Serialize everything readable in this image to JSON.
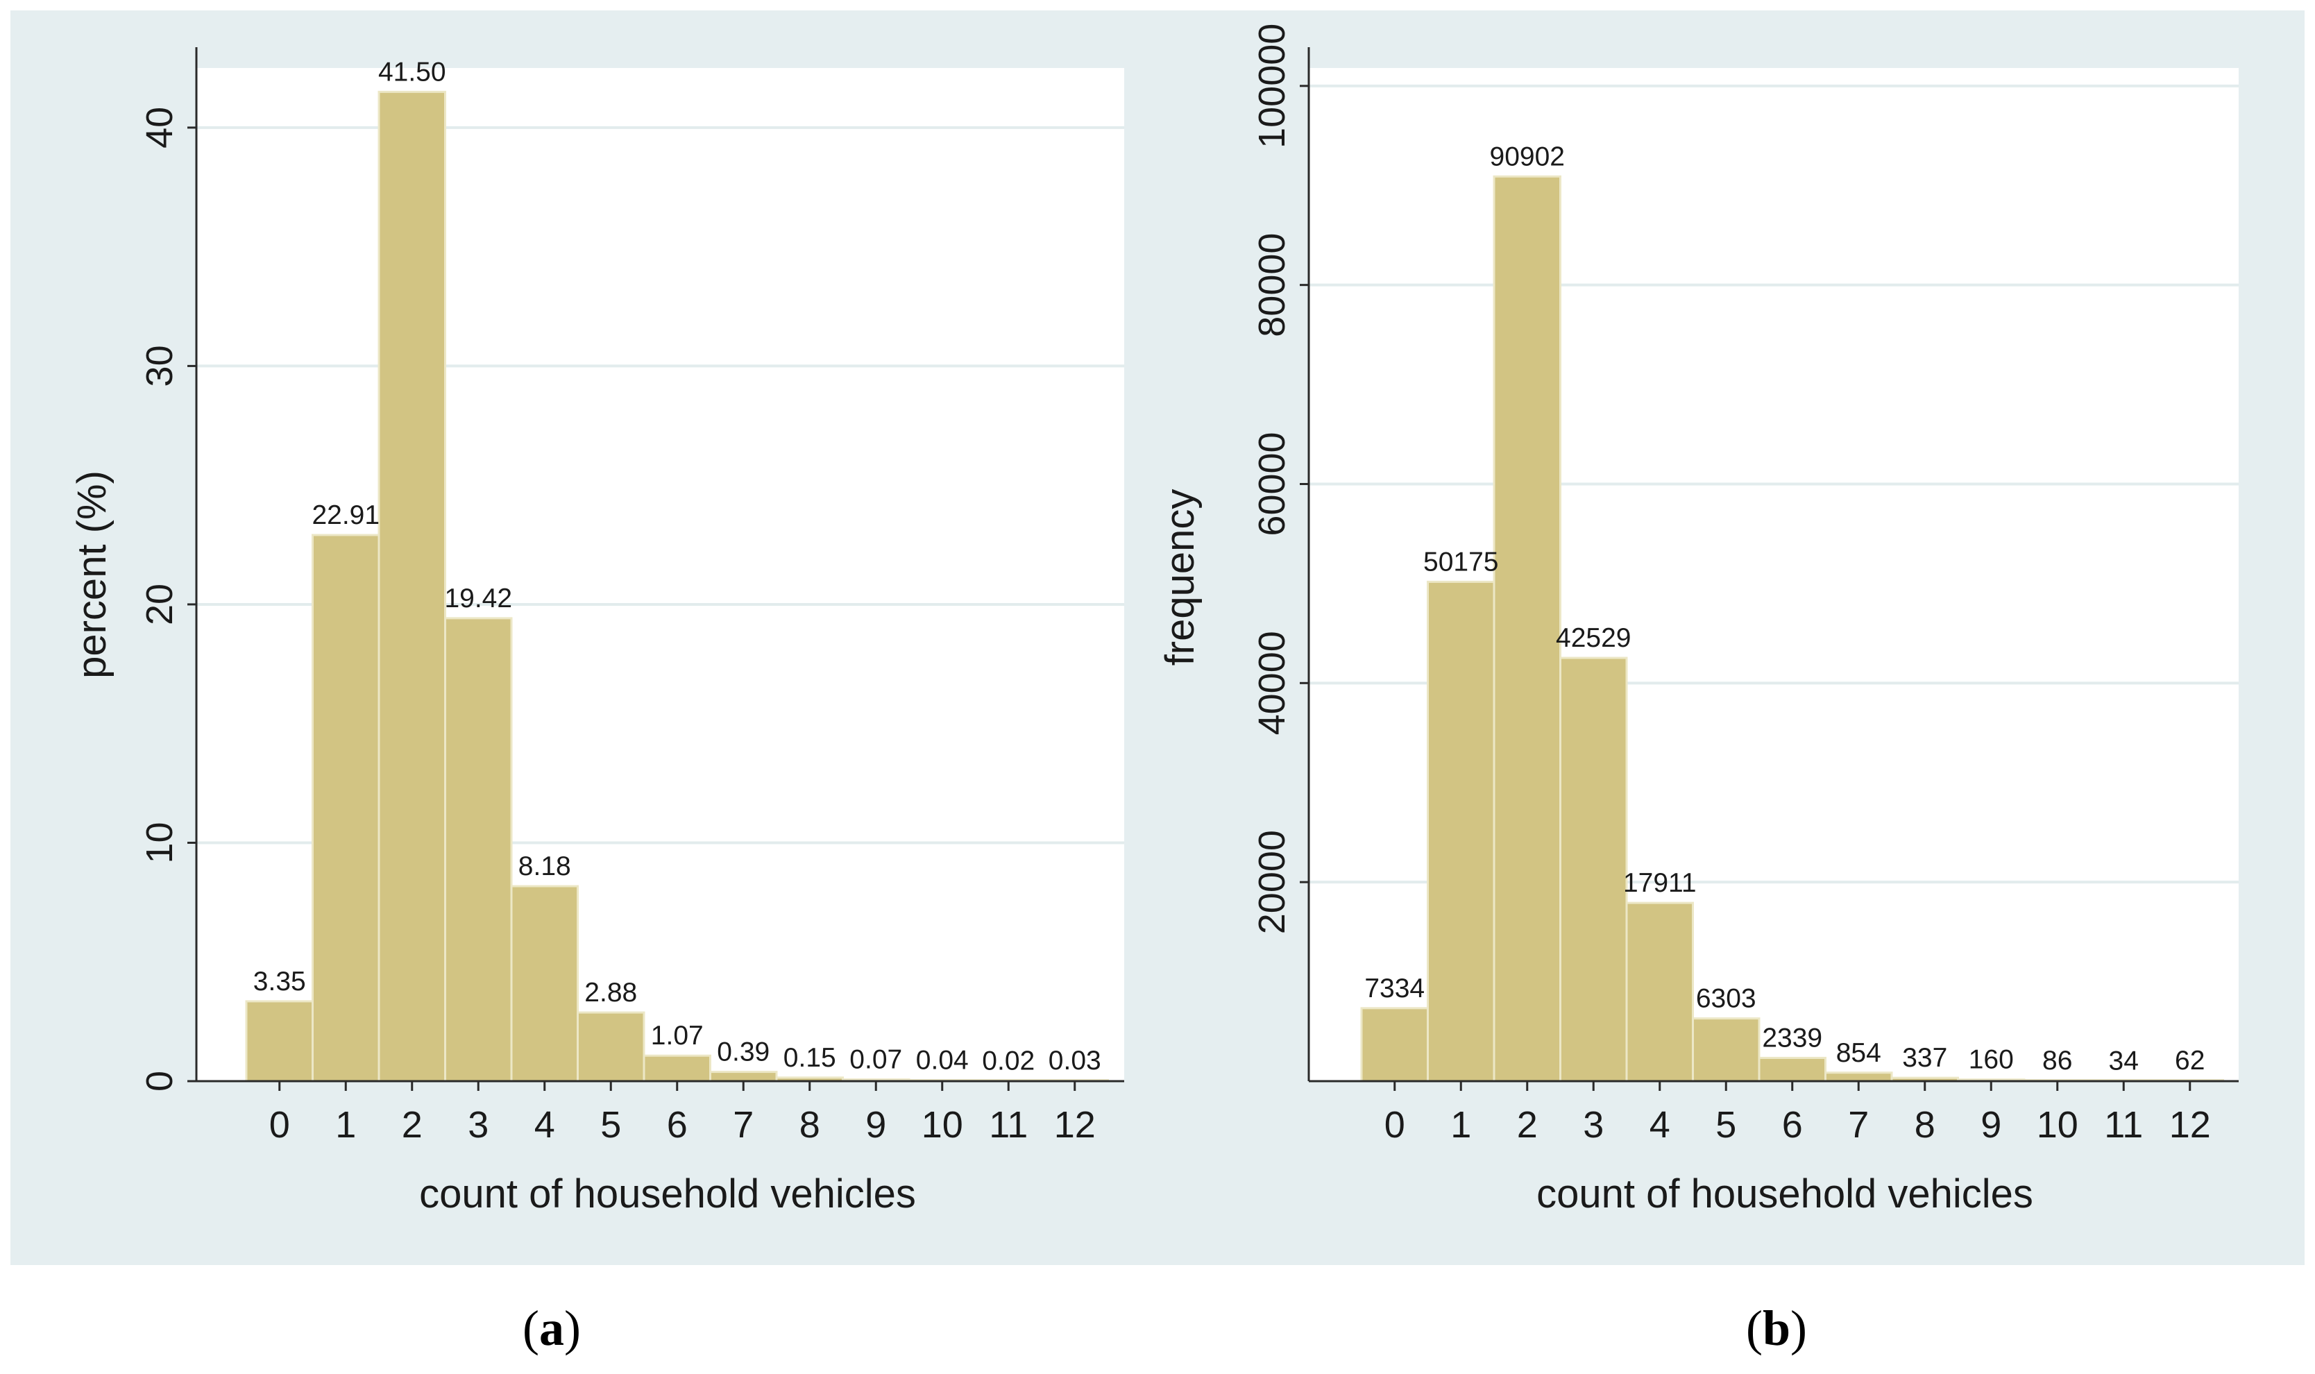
{
  "colors": {
    "figure_background": "#e5eef0",
    "plot_background": "#ffffff",
    "bar_fill": "#d2c483",
    "bar_stroke": "#ece7c6",
    "gridline": "#e2eced",
    "axis": "#2a2a2a",
    "text": "#1a1a1a"
  },
  "chart_data": [
    {
      "id": "a",
      "type": "bar",
      "title": "",
      "panel_label": {
        "open": "(",
        "letter": "a",
        "close": ")"
      },
      "categories": [
        "0",
        "1",
        "2",
        "3",
        "4",
        "5",
        "6",
        "7",
        "8",
        "9",
        "10",
        "11",
        "12"
      ],
      "values": [
        3.35,
        22.91,
        41.5,
        19.42,
        8.18,
        2.88,
        1.07,
        0.39,
        0.15,
        0.07,
        0.04,
        0.02,
        0.03
      ],
      "value_labels": [
        "3.35",
        "22.91",
        "41.50",
        "19.42",
        "8.18",
        "2.88",
        "1.07",
        "0.39",
        "0.15",
        "0.07",
        "0.04",
        "0.02",
        "0.03"
      ],
      "xlabel": "count of household vehicles",
      "ylabel": "percent (%)",
      "ylim": [
        0,
        42.5
      ],
      "yticks": [
        0,
        10,
        20,
        30,
        40
      ],
      "ytick_labels": [
        "0",
        "10",
        "20",
        "30",
        "40"
      ],
      "grid": true
    },
    {
      "id": "b",
      "type": "bar",
      "title": "",
      "panel_label": {
        "open": "(",
        "letter": "b",
        "close": ")"
      },
      "categories": [
        "0",
        "1",
        "2",
        "3",
        "4",
        "5",
        "6",
        "7",
        "8",
        "9",
        "10",
        "11",
        "12"
      ],
      "values": [
        7334,
        50175,
        90902,
        42529,
        17911,
        6303,
        2339,
        854,
        337,
        160,
        86,
        34,
        62
      ],
      "value_labels": [
        "7334",
        "50175",
        "90902",
        "42529",
        "17911",
        "6303",
        "2339",
        "854",
        "337",
        "160",
        "86",
        "34",
        "62"
      ],
      "xlabel": "count of household vehicles",
      "ylabel": "frequency",
      "ylim": [
        0,
        101800
      ],
      "yticks": [
        20000,
        40000,
        60000,
        80000,
        100000
      ],
      "ytick_labels": [
        "20000",
        "40000",
        "60000",
        "80000",
        "100000"
      ],
      "grid": true
    }
  ]
}
